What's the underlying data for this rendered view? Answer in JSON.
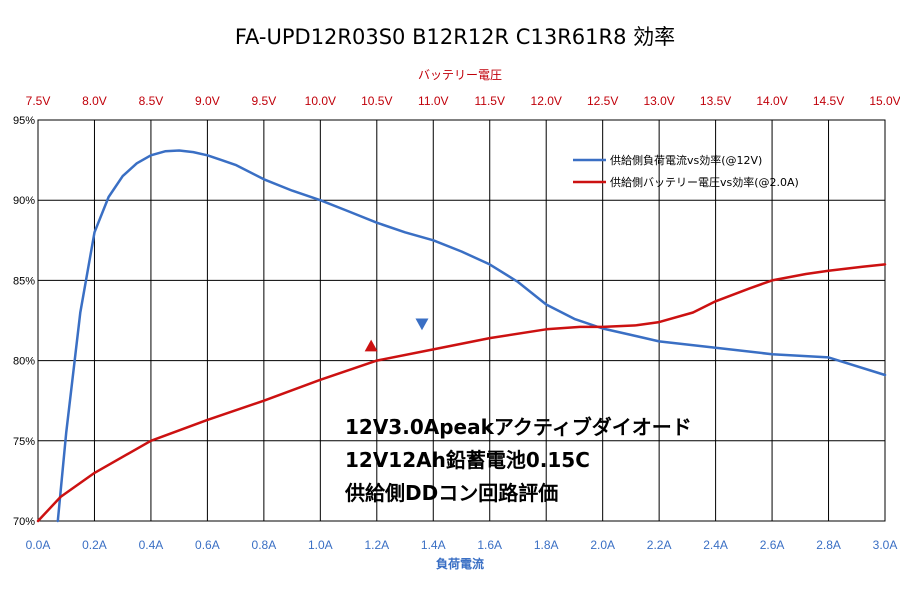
{
  "chart_data": {
    "type": "line",
    "title": "FA-UPD12R03S0 B12R12R C13R61R8 効率",
    "xlabel_bottom": "負荷電流",
    "xlabel_top": "バッテリー電圧",
    "y_ticks": [
      "70%",
      "75%",
      "80%",
      "85%",
      "90%",
      "95%"
    ],
    "ylim": [
      70,
      95
    ],
    "x_bottom_ticks": [
      "0.0A",
      "0.2A",
      "0.4A",
      "0.6A",
      "0.8A",
      "1.0A",
      "1.2A",
      "1.4A",
      "1.6A",
      "1.8A",
      "2.0A",
      "2.2A",
      "2.4A",
      "2.6A",
      "2.8A",
      "3.0A"
    ],
    "x_bottom_range": [
      0.0,
      3.0
    ],
    "x_top_ticks": [
      "7.5V",
      "8.0V",
      "8.5V",
      "9.0V",
      "9.5V",
      "10.0V",
      "10.5V",
      "11.0V",
      "11.5V",
      "12.0V",
      "12.5V",
      "13.0V",
      "13.5V",
      "14.0V",
      "14.5V",
      "15.0V"
    ],
    "x_top_range": [
      7.5,
      15.0
    ],
    "grid": true,
    "legend_position": "top-right",
    "series": [
      {
        "name": "供給側負荷電流vs効率(@12V)",
        "color": "#3a6fc4",
        "axis": "bottom",
        "x": [
          0.07,
          0.1,
          0.15,
          0.2,
          0.25,
          0.3,
          0.35,
          0.4,
          0.45,
          0.5,
          0.55,
          0.6,
          0.65,
          0.7,
          0.8,
          0.9,
          1.0,
          1.1,
          1.2,
          1.3,
          1.4,
          1.5,
          1.6,
          1.7,
          1.8,
          1.9,
          2.0,
          2.1,
          2.2,
          2.4,
          2.6,
          2.8,
          3.0
        ],
        "y": [
          70.0,
          75.5,
          83.0,
          88.0,
          90.2,
          91.5,
          92.3,
          92.8,
          93.05,
          93.1,
          93.0,
          92.8,
          92.5,
          92.2,
          91.3,
          90.6,
          90.0,
          89.3,
          88.6,
          88.0,
          87.5,
          86.8,
          86.0,
          84.9,
          83.5,
          82.6,
          82.0,
          81.6,
          81.2,
          80.8,
          80.4,
          80.2,
          79.1
        ]
      },
      {
        "name": "供給側バッテリー電圧vs効率(@2.0A)",
        "color": "#cc1111",
        "axis": "top",
        "x": [
          7.5,
          7.7,
          8.0,
          8.5,
          9.0,
          9.5,
          10.0,
          10.5,
          11.0,
          11.5,
          12.0,
          12.3,
          12.5,
          12.8,
          13.0,
          13.3,
          13.5,
          13.8,
          14.0,
          14.3,
          14.5,
          14.8,
          15.0
        ],
        "y": [
          70.0,
          71.5,
          73.0,
          75.0,
          76.3,
          77.5,
          78.8,
          80.0,
          80.7,
          81.4,
          81.95,
          82.1,
          82.1,
          82.2,
          82.4,
          83.0,
          83.7,
          84.5,
          85.0,
          85.4,
          85.6,
          85.85,
          86.0
        ]
      }
    ],
    "markers": [
      {
        "shape": "triangle-up",
        "color": "#cc1111",
        "axis": "top",
        "x": 10.45,
        "y": 80.9
      },
      {
        "shape": "triangle-down",
        "color": "#3a6fc4",
        "axis": "bottom",
        "x": 1.36,
        "y": 82.3
      }
    ],
    "annotation_lines": [
      "12V3.0Apeakアクティブダイオード",
      "12V12Ah鉛蓄電池0.15C",
      "供給側DDコン回路評価"
    ]
  }
}
